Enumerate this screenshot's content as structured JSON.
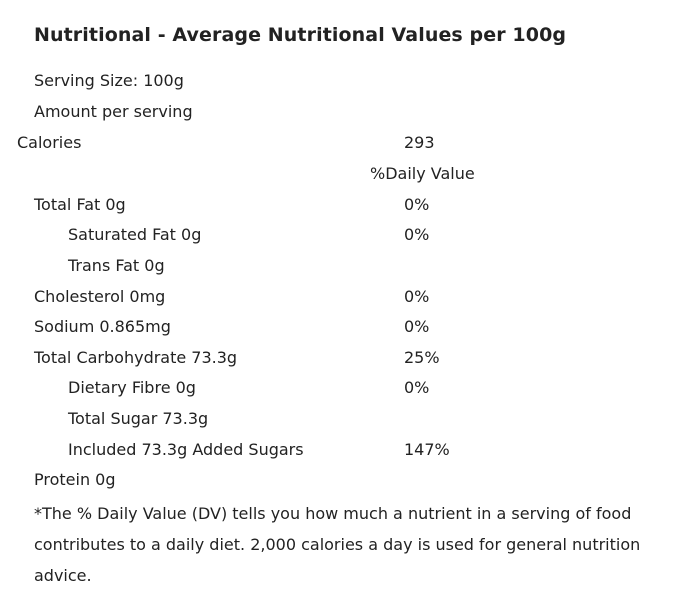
{
  "title": "Nutritional - Average Nutritional Values per 100g",
  "serving_size": "Serving Size: 100g",
  "amount_per_serving": "Amount per serving",
  "calories": {
    "label": "Calories",
    "value": "293"
  },
  "daily_value_header": "%Daily Value",
  "nutrients": [
    {
      "label": "Total Fat 0g",
      "value": "0%"
    },
    {
      "label": "Saturated Fat 0g",
      "value": "0%"
    },
    {
      "label": "Trans Fat 0g",
      "value": ""
    },
    {
      "label": "Cholesterol 0mg",
      "value": "0%"
    },
    {
      "label": "Sodium 0.865mg",
      "value": "0%"
    },
    {
      "label": "Total Carbohydrate 73.3g",
      "value": "25%"
    },
    {
      "label": "Dietary Fibre 0g",
      "value": "0%"
    },
    {
      "label": "Total Sugar 73.3g",
      "value": ""
    },
    {
      "label": "Included 73.3g Added Sugars",
      "value": "147%"
    },
    {
      "label": "Protein 0g",
      "value": ""
    }
  ],
  "footnote": "*The % Daily Value (DV) tells you how much a nutrient in a serving of food contributes to a daily diet. 2,000 calories a day is used for general nutrition advice."
}
